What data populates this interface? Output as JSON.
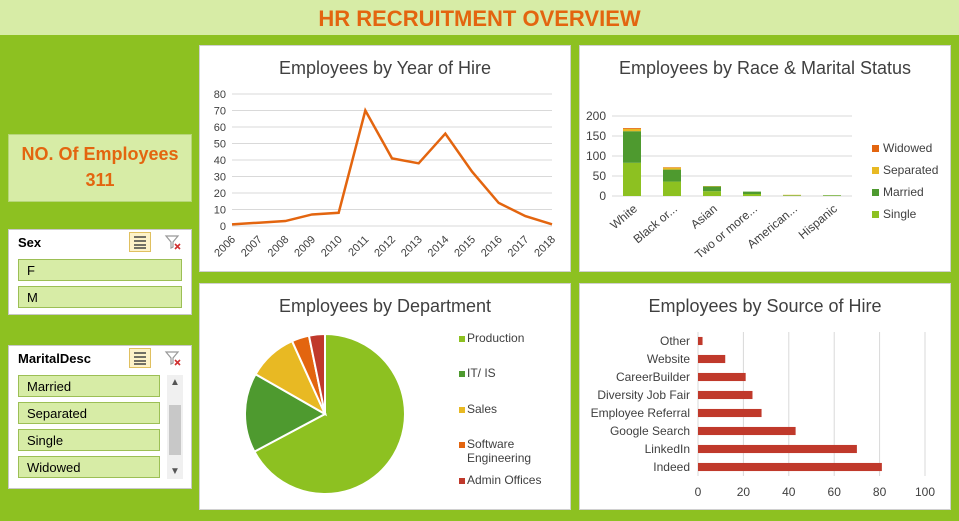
{
  "header": {
    "title": "HR RECRUITMENT OVERVIEW"
  },
  "kpi": {
    "label": "NO. Of Employees",
    "value": "311"
  },
  "slicers": {
    "sex": {
      "title": "Sex",
      "items": [
        "F",
        "M"
      ]
    },
    "marital": {
      "title": "MaritalDesc",
      "items": [
        "Married",
        "Separated",
        "Single",
        "Widowed"
      ]
    }
  },
  "colors": {
    "orange": "#e3650f",
    "green_dark": "#4e9a2f",
    "green_light": "#8dc121",
    "yellow": "#e8b923",
    "red": "#c0392b"
  },
  "chart_data": [
    {
      "type": "line",
      "title": "Employees by Year of Hire",
      "x": [
        "2006",
        "2007",
        "2008",
        "2009",
        "2010",
        "2011",
        "2012",
        "2013",
        "2014",
        "2015",
        "2016",
        "2017",
        "2018"
      ],
      "y": [
        1,
        2,
        3,
        7,
        8,
        70,
        41,
        38,
        56,
        33,
        14,
        6,
        1
      ],
      "ylim": [
        0,
        80
      ],
      "yticks": [
        0,
        10,
        20,
        30,
        40,
        50,
        60,
        70,
        80
      ],
      "grid": true
    },
    {
      "type": "bar",
      "stacked": true,
      "title": "Employees by Race & Marital Status",
      "categories": [
        "White",
        "Black or...",
        "Asian",
        "Two or more...",
        "American...",
        "Hispanic"
      ],
      "series": [
        {
          "name": "Single",
          "values": [
            83,
            36,
            12,
            5,
            1,
            1
          ]
        },
        {
          "name": "Married",
          "values": [
            79,
            30,
            12,
            6,
            1,
            1
          ]
        },
        {
          "name": "Separated",
          "values": [
            6,
            5,
            1,
            0,
            1,
            0
          ]
        },
        {
          "name": "Widowed",
          "values": [
            2,
            1,
            0,
            0,
            0,
            0
          ]
        }
      ],
      "ylim": [
        0,
        200
      ],
      "yticks": [
        0,
        50,
        100,
        150,
        200
      ],
      "legend": "right",
      "grid": true
    },
    {
      "type": "pie",
      "title": "Employees by Department",
      "labels": [
        "Production",
        "IT/IS",
        "Sales",
        "Software Engineering",
        "Admin Offices"
      ],
      "values": [
        209,
        50,
        31,
        11,
        10
      ],
      "legend": "right"
    },
    {
      "type": "bar",
      "orientation": "horizontal",
      "title": "Employees by Source of Hire",
      "categories": [
        "Other",
        "Website",
        "CareerBuilder",
        "Diversity Job Fair",
        "Employee Referral",
        "Google Search",
        "LinkedIn",
        "Indeed"
      ],
      "values": [
        2,
        12,
        21,
        24,
        28,
        43,
        70,
        81
      ],
      "xlim": [
        0,
        100
      ],
      "xticks": [
        0,
        20,
        40,
        60,
        80,
        100
      ],
      "grid": true
    }
  ]
}
